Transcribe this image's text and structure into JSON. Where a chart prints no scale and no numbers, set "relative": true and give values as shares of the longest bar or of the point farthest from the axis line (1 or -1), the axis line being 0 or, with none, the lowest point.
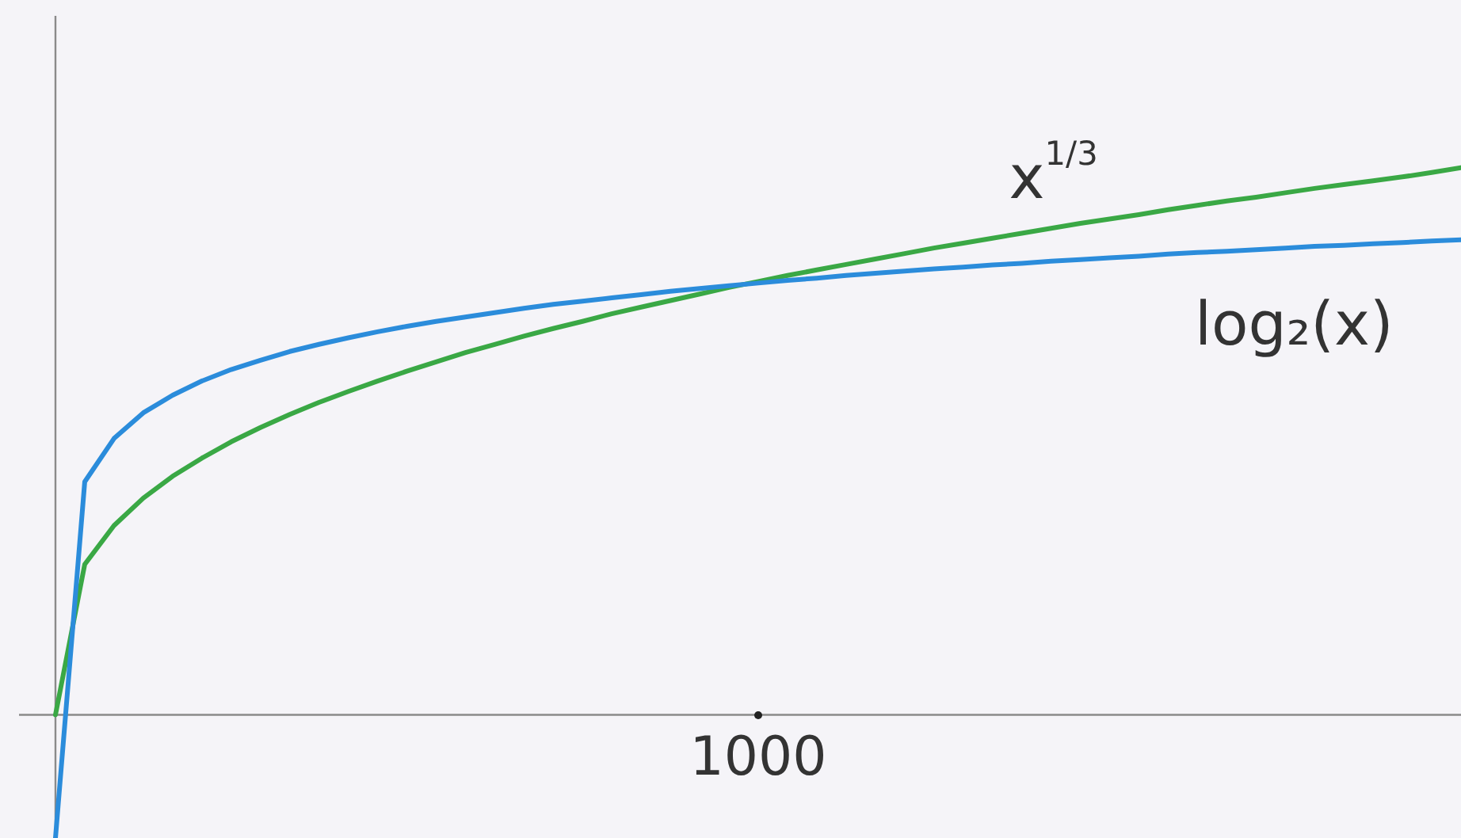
{
  "chart_data": {
    "type": "line",
    "relative": true,
    "marker": "none",
    "legend": false,
    "annotations": [
      "1000"
    ],
    "categories": [
      null,
      null,
      null,
      null,
      null,
      null,
      null,
      null,
      null,
      null,
      null,
      null,
      null,
      null,
      null,
      null,
      null,
      null,
      null,
      null,
      null,
      null,
      null,
      null,
      null,
      null,
      null,
      null,
      null,
      null,
      null,
      null,
      null,
      null,
      null,
      null,
      null,
      null,
      null,
      null,
      null,
      null,
      null,
      null,
      null,
      null,
      null,
      null,
      null
    ],
    "series": [
      {
        "name": "log₂(x)",
        "color": "#2b8cdb",
        "values": [
          -0.225,
          0.426,
          0.505,
          0.552,
          0.584,
          0.61,
          0.631,
          0.648,
          0.664,
          0.677,
          0.689,
          0.7,
          0.71,
          0.719,
          0.727,
          0.735,
          0.743,
          0.75,
          0.756,
          0.762,
          0.768,
          0.774,
          0.779,
          0.784,
          0.789,
          0.794,
          0.798,
          0.803,
          0.807,
          0.811,
          0.815,
          0.818,
          0.822,
          0.825,
          0.829,
          0.832,
          0.835,
          0.838,
          0.842,
          0.845,
          0.847,
          0.85,
          0.853,
          0.856,
          0.858,
          0.861,
          0.863,
          0.866,
          0.868
        ]
      },
      {
        "name": "x$^{1/3}$",
        "color": "#3aa845",
        "values": [
          0,
          0.275,
          0.346,
          0.396,
          0.436,
          0.469,
          0.499,
          0.525,
          0.549,
          0.571,
          0.591,
          0.61,
          0.628,
          0.645,
          0.662,
          0.677,
          0.692,
          0.706,
          0.719,
          0.733,
          0.745,
          0.757,
          0.769,
          0.781,
          0.792,
          0.803,
          0.813,
          0.823,
          0.833,
          0.843,
          0.853,
          0.862,
          0.871,
          0.88,
          0.889,
          0.898,
          0.906,
          0.914,
          0.923,
          0.931,
          0.939,
          0.946,
          0.954,
          0.962,
          0.969,
          0.976,
          0.983,
          0.991,
          1
        ]
      }
    ]
  }
}
